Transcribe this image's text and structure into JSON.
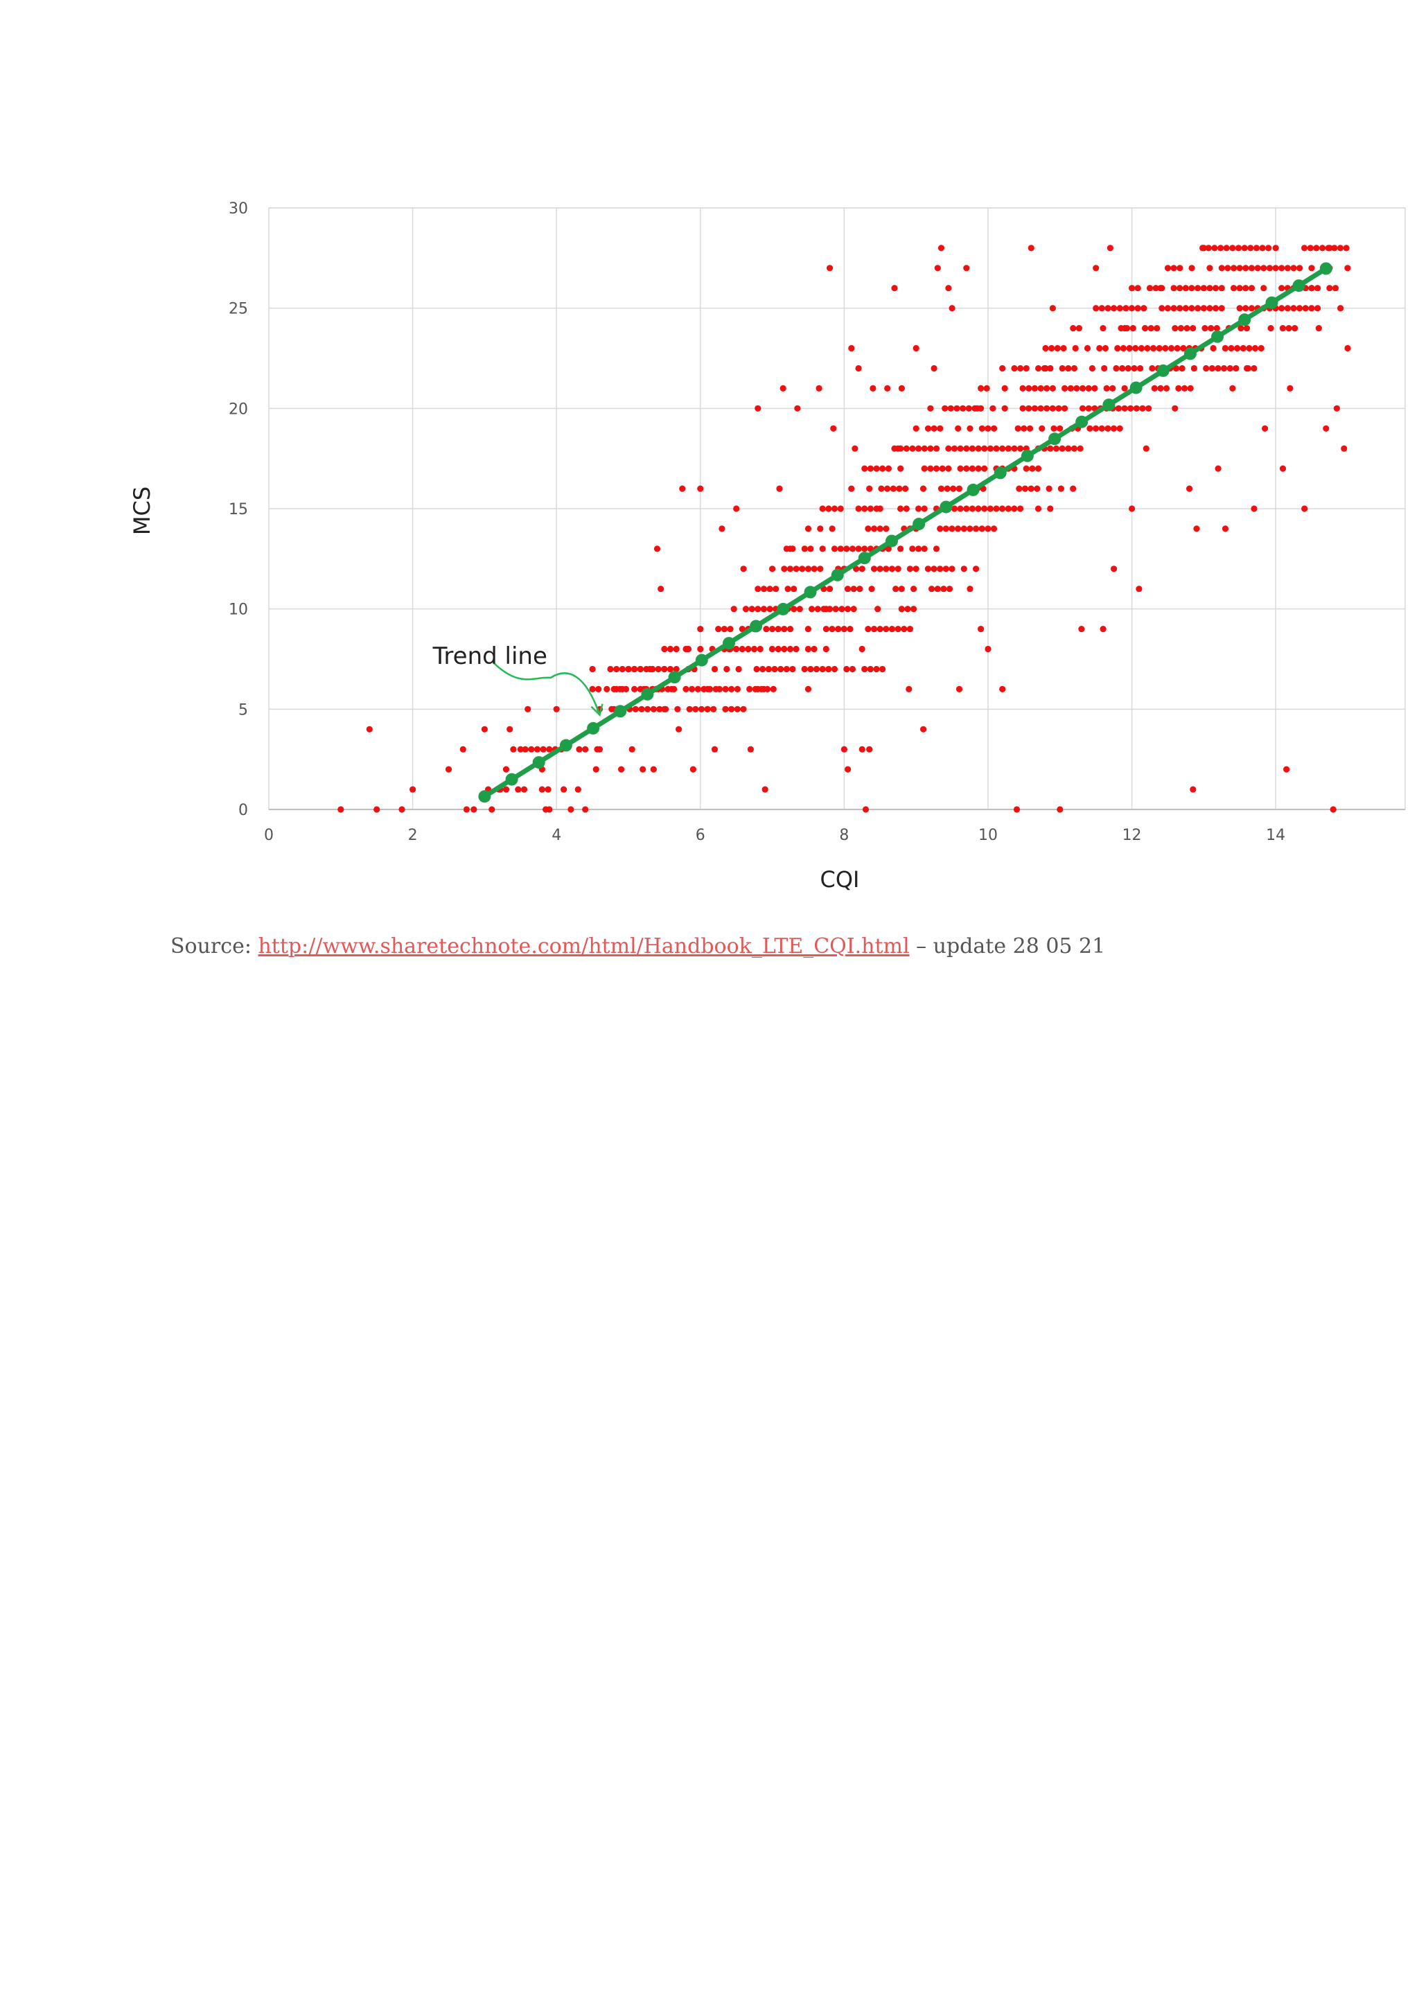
{
  "chart_data": {
    "type": "scatter",
    "xlabel": "CQI",
    "ylabel": "MCS",
    "xlim": [
      0,
      15.8
    ],
    "ylim": [
      0,
      30
    ],
    "xticks": [
      0,
      2,
      4,
      6,
      8,
      10,
      12,
      14
    ],
    "yticks": [
      0,
      5,
      10,
      15,
      20,
      25,
      30
    ],
    "grid": true,
    "legend": "none",
    "colors": {
      "scatter": "#ee1111",
      "trend": "#1f9e4a",
      "annotation": "#22bb55",
      "grid": "#d9d9d9"
    },
    "annotation": {
      "text": "Trend line",
      "at": [
        4.6,
        4.3
      ]
    },
    "series": [
      {
        "kind": "scatter",
        "points": [
          [
            1.0,
            0
          ],
          [
            1.5,
            0
          ],
          [
            1.85,
            0
          ],
          [
            1.4,
            4
          ],
          [
            2.0,
            1
          ],
          [
            2.5,
            2
          ],
          [
            2.7,
            3
          ],
          [
            2.75,
            0
          ],
          [
            2.85,
            0
          ],
          [
            3.0,
            4
          ],
          [
            3.1,
            0
          ],
          [
            3.2,
            1
          ],
          [
            3.3,
            2
          ],
          [
            3.35,
            4
          ],
          [
            3.5,
            3
          ],
          [
            3.6,
            5
          ],
          [
            3.8,
            2
          ],
          [
            3.85,
            0
          ],
          [
            3.9,
            0
          ],
          [
            4.0,
            5
          ],
          [
            4.1,
            1
          ],
          [
            4.2,
            0
          ],
          [
            4.3,
            1
          ],
          [
            4.4,
            0
          ],
          [
            4.5,
            4
          ],
          [
            4.55,
            2
          ],
          [
            4.6,
            3
          ],
          [
            4.7,
            6
          ],
          [
            4.8,
            5
          ],
          [
            4.9,
            2
          ],
          [
            5.0,
            7
          ],
          [
            5.05,
            3
          ],
          [
            5.2,
            2
          ],
          [
            5.3,
            7
          ],
          [
            5.35,
            2
          ],
          [
            5.4,
            13
          ],
          [
            5.45,
            11
          ],
          [
            5.5,
            5
          ],
          [
            5.6,
            6
          ],
          [
            5.7,
            4
          ],
          [
            5.75,
            16
          ],
          [
            5.8,
            8
          ],
          [
            5.9,
            2
          ],
          [
            6.0,
            16
          ],
          [
            6.1,
            5
          ],
          [
            6.2,
            3
          ],
          [
            6.3,
            14
          ],
          [
            6.35,
            5
          ],
          [
            6.4,
            8
          ],
          [
            6.5,
            15
          ],
          [
            6.6,
            12
          ],
          [
            6.7,
            3
          ],
          [
            6.8,
            20
          ],
          [
            6.9,
            1
          ],
          [
            7.0,
            9
          ],
          [
            7.1,
            16
          ],
          [
            7.15,
            21
          ],
          [
            7.25,
            13
          ],
          [
            7.35,
            20
          ],
          [
            7.5,
            6
          ],
          [
            7.65,
            21
          ],
          [
            7.75,
            10
          ],
          [
            7.8,
            27
          ],
          [
            7.85,
            19
          ],
          [
            8.0,
            3
          ],
          [
            8.05,
            2
          ],
          [
            8.1,
            23
          ],
          [
            8.15,
            18
          ],
          [
            8.2,
            22
          ],
          [
            8.25,
            3
          ],
          [
            8.3,
            0
          ],
          [
            8.35,
            3
          ],
          [
            8.4,
            21
          ],
          [
            8.5,
            15
          ],
          [
            8.6,
            21
          ],
          [
            8.7,
            26
          ],
          [
            8.75,
            18
          ],
          [
            8.8,
            21
          ],
          [
            8.9,
            6
          ],
          [
            9.0,
            23
          ],
          [
            9.1,
            4
          ],
          [
            9.2,
            20
          ],
          [
            9.25,
            22
          ],
          [
            9.3,
            27
          ],
          [
            9.35,
            28
          ],
          [
            9.45,
            26
          ],
          [
            9.5,
            25
          ],
          [
            9.6,
            6
          ],
          [
            9.7,
            27
          ],
          [
            9.75,
            11
          ],
          [
            9.85,
            20
          ],
          [
            9.9,
            9
          ],
          [
            10.0,
            8
          ],
          [
            10.2,
            6
          ],
          [
            10.4,
            0
          ],
          [
            10.6,
            28
          ],
          [
            10.8,
            22
          ],
          [
            10.9,
            25
          ],
          [
            11.0,
            0
          ],
          [
            11.3,
            9
          ],
          [
            11.5,
            27
          ],
          [
            11.6,
            9
          ],
          [
            11.7,
            28
          ],
          [
            11.75,
            12
          ],
          [
            11.9,
            24
          ],
          [
            12.0,
            15
          ],
          [
            12.1,
            11
          ],
          [
            12.2,
            18
          ],
          [
            12.4,
            26
          ],
          [
            12.6,
            20
          ],
          [
            12.8,
            16
          ],
          [
            12.85,
            1
          ],
          [
            12.9,
            14
          ],
          [
            13.0,
            28
          ],
          [
            13.2,
            17
          ],
          [
            13.3,
            14
          ],
          [
            13.4,
            21
          ],
          [
            13.6,
            22
          ],
          [
            13.7,
            15
          ],
          [
            13.85,
            19
          ],
          [
            14.0,
            28
          ],
          [
            14.1,
            17
          ],
          [
            14.15,
            2
          ],
          [
            14.2,
            21
          ],
          [
            14.4,
            15
          ],
          [
            14.5,
            26
          ],
          [
            14.6,
            24
          ],
          [
            14.7,
            19
          ],
          [
            14.75,
            28
          ],
          [
            14.8,
            0
          ],
          [
            14.9,
            25
          ],
          [
            15.0,
            23
          ],
          [
            14.95,
            18
          ],
          [
            14.85,
            20
          ]
        ],
        "bands": [
          [
            3.05,
            3.95,
            1,
            1
          ],
          [
            3.4,
            4.6,
            3,
            3
          ],
          [
            4.5,
            5.5,
            6,
            7
          ],
          [
            4.6,
            6.6,
            5,
            5
          ],
          [
            4.8,
            6.9,
            6,
            6
          ],
          [
            5.0,
            6.0,
            7,
            7
          ],
          [
            5.5,
            8.3,
            8,
            8
          ],
          [
            6.0,
            9.0,
            9,
            9
          ],
          [
            6.1,
            7.4,
            6,
            6
          ],
          [
            6.2,
            8.6,
            7,
            7
          ],
          [
            6.3,
            9.0,
            10,
            10
          ],
          [
            6.8,
            9.6,
            11,
            11
          ],
          [
            7.0,
            9.9,
            12,
            12
          ],
          [
            7.2,
            9.4,
            13,
            13
          ],
          [
            7.5,
            10.1,
            14,
            14
          ],
          [
            7.7,
            10.9,
            15,
            15
          ],
          [
            8.1,
            11.3,
            16,
            16
          ],
          [
            8.2,
            10.7,
            17,
            17
          ],
          [
            8.7,
            11.5,
            18,
            18
          ],
          [
            9.0,
            12.0,
            19,
            19
          ],
          [
            9.4,
            12.3,
            20,
            20
          ],
          [
            9.9,
            12.9,
            21,
            21
          ],
          [
            10.2,
            13.7,
            22,
            22
          ],
          [
            10.8,
            13.9,
            23,
            23
          ],
          [
            11.1,
            14.3,
            24,
            24
          ],
          [
            11.5,
            14.7,
            25,
            25
          ],
          [
            12.0,
            15.0,
            26,
            26
          ],
          [
            12.5,
            15.0,
            27,
            27
          ],
          [
            12.9,
            15.0,
            28,
            28
          ]
        ]
      },
      {
        "kind": "trend",
        "x_start": 3.0,
        "x_end": 14.7,
        "points": 32,
        "slope": 2.25,
        "intercept": -6.1
      }
    ]
  },
  "source": {
    "prefix": "Source: ",
    "link": "http://www.sharetechnote.com/html/Handbook_LTE_CQI.html",
    "suffix": " – update 28 05 21"
  }
}
